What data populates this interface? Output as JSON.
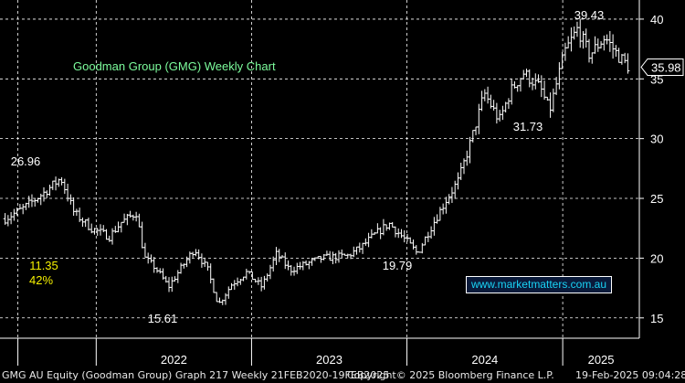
{
  "chart_data": {
    "type": "ohlc",
    "title": "Goodman Group (GMG) Weekly Chart",
    "title_color": "#7CFC9C",
    "background_color": "#000000",
    "price_color": "#ffffff",
    "grid_color": "#ffffff",
    "grid": true,
    "grid_style": "dashed",
    "y_axis_side": "right",
    "ylim": [
      13.3,
      41.6
    ],
    "y_ticks": [
      15,
      20,
      25,
      30,
      35,
      40
    ],
    "x_labels": [
      "2022",
      "2023",
      "2024",
      "2025"
    ],
    "last_price": 35.98,
    "last_price_label": "35.98",
    "annotations": [
      {
        "text": "26.96",
        "value": 26.96,
        "color": "#ffffff"
      },
      {
        "text": "11.35",
        "color": "#f5f000"
      },
      {
        "text": "42%",
        "color": "#f5f000"
      },
      {
        "text": "15.61",
        "value": 15.61,
        "color": "#ffffff"
      },
      {
        "text": "19.79",
        "value": 19.79,
        "color": "#ffffff"
      },
      {
        "text": "31.73",
        "value": 31.73,
        "color": "#ffffff"
      },
      {
        "text": "39.43",
        "value": 39.43,
        "color": "#ffffff"
      }
    ],
    "anchors": [
      [
        "2021-06-01",
        23.3
      ],
      [
        "2021-07-15",
        24.2
      ],
      [
        "2021-09-01",
        25.5
      ],
      [
        "2021-10-10",
        26.7
      ],
      [
        "2021-11-10",
        23.8
      ],
      [
        "2021-12-20",
        22.5
      ],
      [
        "2022-02-01",
        21.8
      ],
      [
        "2022-03-01",
        23.0
      ],
      [
        "2022-04-05",
        23.8
      ],
      [
        "2022-04-25",
        20.0
      ],
      [
        "2022-05-20",
        19.2
      ],
      [
        "2022-06-20",
        17.6
      ],
      [
        "2022-07-20",
        19.2
      ],
      [
        "2022-08-20",
        20.8
      ],
      [
        "2022-09-20",
        19.0
      ],
      [
        "2022-10-15",
        16.1
      ],
      [
        "2022-11-15",
        17.8
      ],
      [
        "2022-12-20",
        18.8
      ],
      [
        "2023-01-25",
        17.6
      ],
      [
        "2023-03-01",
        20.4
      ],
      [
        "2023-04-01",
        19.0
      ],
      [
        "2023-05-01",
        19.4
      ],
      [
        "2023-06-15",
        20.0
      ],
      [
        "2023-08-15",
        20.2
      ],
      [
        "2023-09-15",
        20.9
      ],
      [
        "2023-10-15",
        21.9
      ],
      [
        "2023-11-20",
        22.9
      ],
      [
        "2024-01-01",
        21.4
      ],
      [
        "2024-01-25",
        20.4
      ],
      [
        "2024-03-01",
        22.8
      ],
      [
        "2024-04-01",
        24.8
      ],
      [
        "2024-05-01",
        26.5
      ],
      [
        "2024-06-01",
        30.0
      ],
      [
        "2024-07-01",
        33.8
      ],
      [
        "2024-08-05",
        31.5
      ],
      [
        "2024-09-01",
        34.0
      ],
      [
        "2024-10-01",
        35.5
      ],
      [
        "2024-11-10",
        34.2
      ],
      [
        "2024-12-01",
        32.3
      ],
      [
        "2025-01-05",
        37.2
      ],
      [
        "2025-02-05",
        39.2
      ],
      [
        "2025-03-05",
        37.0
      ],
      [
        "2025-04-10",
        38.5
      ],
      [
        "2025-05-10",
        37.0
      ],
      [
        "2025-06-05",
        36.0
      ]
    ]
  },
  "watermark": "www.marketmatters.com.au",
  "footer": {
    "left": "GMG AU Equity (Goodman Group) Graph 217  Weekly 21FEB2020-19FEB2025",
    "middle": "Copyright© 2025 Bloomberg Finance L.P.",
    "right": "19-Feb-2025 09:04:28"
  }
}
